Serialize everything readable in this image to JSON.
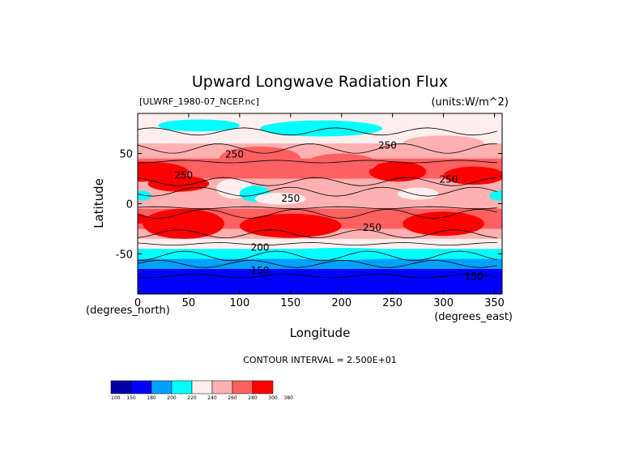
{
  "chart_data": {
    "type": "heatmap",
    "title": "Upward Longwave Radiation Flux",
    "file_label": "[ULWRF_1980-07_NCEP.nc]",
    "units_label": "(units:W/m^2)",
    "xlabel": "Longitude",
    "ylabel": "Latitude",
    "x_unit_label": "(degrees_east)",
    "y_unit_label": "(degrees_north)",
    "xlim": [
      0,
      357.5
    ],
    "ylim": [
      -90,
      90
    ],
    "x_ticks": [
      0,
      50,
      100,
      150,
      200,
      250,
      300,
      350
    ],
    "y_ticks": [
      -50,
      0,
      50
    ],
    "contour_interval_text": "CONTOUR INTERVAL = 2.500E+01",
    "contour_labels": [
      "250",
      "250",
      "250",
      "250",
      "250",
      "250",
      "200",
      "150",
      "150"
    ],
    "colorbar_levels": [
      "100",
      "150",
      "180",
      "200",
      "220",
      "240",
      "260",
      "280",
      "300",
      "380"
    ],
    "colorbar_colors": [
      "#0000a8",
      "#0000ff",
      "#00a0ff",
      "#00ffff",
      "#ffeeee",
      "#ffb0b0",
      "#ff6060",
      "#ff0000"
    ],
    "zonal_profile": [
      {
        "lat": 90,
        "value": 225
      },
      {
        "lat": 75,
        "value": 228
      },
      {
        "lat": 60,
        "value": 238
      },
      {
        "lat": 45,
        "value": 262
      },
      {
        "lat": 35,
        "value": 282
      },
      {
        "lat": 25,
        "value": 270
      },
      {
        "lat": 15,
        "value": 245
      },
      {
        "lat": 5,
        "value": 238
      },
      {
        "lat": -5,
        "value": 262
      },
      {
        "lat": -15,
        "value": 275
      },
      {
        "lat": -25,
        "value": 265
      },
      {
        "lat": -35,
        "value": 242
      },
      {
        "lat": -45,
        "value": 215
      },
      {
        "lat": -55,
        "value": 198
      },
      {
        "lat": -65,
        "value": 170
      },
      {
        "lat": -75,
        "value": 160
      },
      {
        "lat": -90,
        "value": 158
      }
    ]
  }
}
